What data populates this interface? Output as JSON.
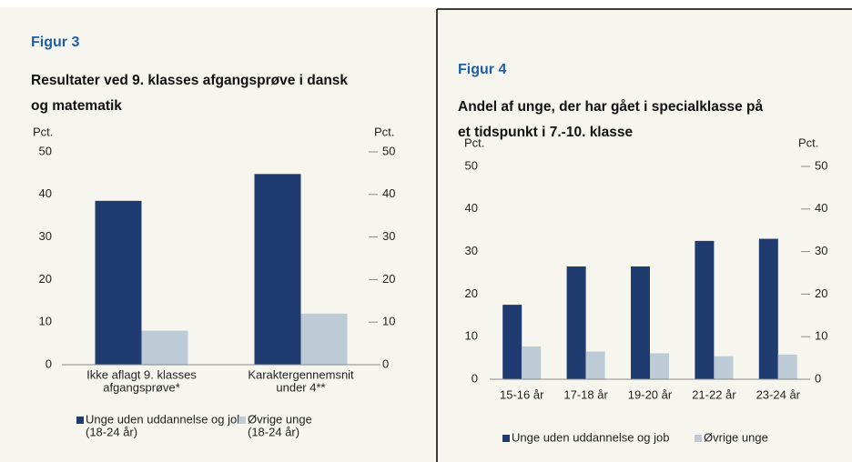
{
  "chart_data": [
    {
      "type": "bar",
      "figure": "Figur 3",
      "title": [
        "Resultater ved 9. klasses afgangsprøve i dansk",
        "og matematik"
      ],
      "y_label": "Pct.",
      "y2_label": "Pct.",
      "categories": [
        [
          "Ikke aflagt 9. klasses",
          "afgangsprøve*"
        ],
        [
          "Karaktergennemsnit",
          "under 4**"
        ]
      ],
      "series": [
        {
          "name": [
            "Unge uden uddannelse og job",
            "(18-24 år)"
          ],
          "color": "#1f3b6f",
          "values": [
            38.5,
            44.8
          ]
        },
        {
          "name": [
            "Øvrige unge",
            "(18-24 år)"
          ],
          "color": "#bccbd5",
          "values": [
            8,
            12
          ]
        }
      ],
      "ylim": [
        0,
        50
      ],
      "yticks": [
        0,
        10,
        20,
        30,
        40,
        50
      ],
      "y2lim": [
        0,
        50
      ],
      "y2ticks": [
        0,
        10,
        20,
        30,
        40,
        50
      ]
    },
    {
      "type": "bar",
      "figure": "Figur 4",
      "title": [
        "Andel af unge, der har gået i specialklasse på",
        "et tidspunkt i 7.-10. klasse"
      ],
      "y_label": "Pct.",
      "y2_label": "Pct.",
      "categories": [
        [
          "15-16 år"
        ],
        [
          "17-18 år"
        ],
        [
          "19-20 år"
        ],
        [
          "21-22 år"
        ],
        [
          "23-24 år"
        ]
      ],
      "series": [
        {
          "name": [
            "Unge uden uddannelse og job"
          ],
          "color": "#1f3b6f",
          "values": [
            17.5,
            26.5,
            26.5,
            32.5,
            33
          ]
        },
        {
          "name": [
            "Øvrige unge"
          ],
          "color": "#bccbd5",
          "values": [
            7.7,
            6.5,
            6.1,
            5.4,
            5.8
          ]
        }
      ],
      "ylim": [
        0,
        50
      ],
      "yticks": [
        0,
        10,
        20,
        30,
        40,
        50
      ],
      "y2lim": [
        0,
        50
      ],
      "y2ticks": [
        0,
        10,
        20,
        30,
        40,
        50
      ]
    }
  ]
}
